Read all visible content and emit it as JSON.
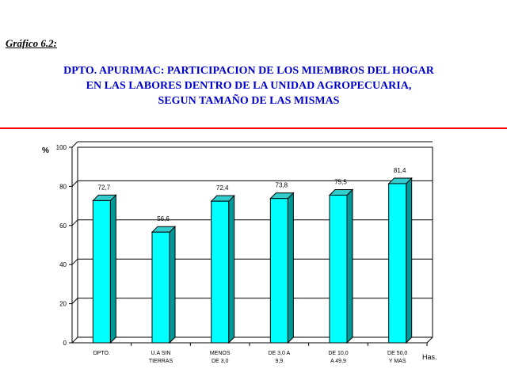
{
  "caption": "Gráfico 6.2:",
  "title_lines": [
    "DPTO. APURIMAC: PARTICIPACION DE LOS MIEMBROS DEL HOGAR",
    "EN LAS LABORES DENTRO DE LA UNIDAD AGROPECUARIA,",
    "SEGUN TAMAÑO DE LAS MISMAS"
  ],
  "colors": {
    "title": "#0000cc",
    "rule": "#ff0000",
    "bar_front": "#00ffff",
    "bar_side": "#009999",
    "bar_top": "#33cccc"
  },
  "chart_data": {
    "type": "bar",
    "title": "DPTO. APURIMAC: PARTICIPACION DE LOS MIEMBROS DEL HOGAR EN LAS LABORES DENTRO DE LA UNIDAD AGROPECUARIA, SEGUN TAMAÑO DE LAS MISMAS",
    "ylabel": "%",
    "xlabel": "Has.",
    "ylim": [
      0,
      100
    ],
    "yticks": [
      0,
      20,
      40,
      60,
      80,
      100
    ],
    "grid": true,
    "categories": [
      [
        "DPTO."
      ],
      [
        "U.A SIN",
        "TIERRAS"
      ],
      [
        "MENOS",
        "DE 3,0"
      ],
      [
        "DE 3,0 A",
        "9,9"
      ],
      [
        "DE 10,0",
        "A 49,9"
      ],
      [
        "DE 50,0",
        "Y MAS"
      ]
    ],
    "values": [
      72.7,
      56.6,
      72.4,
      73.8,
      75.5,
      81.4
    ],
    "value_labels": [
      "72,7",
      "56,6",
      "72,4",
      "73,8",
      "75,5",
      "81,4"
    ]
  }
}
